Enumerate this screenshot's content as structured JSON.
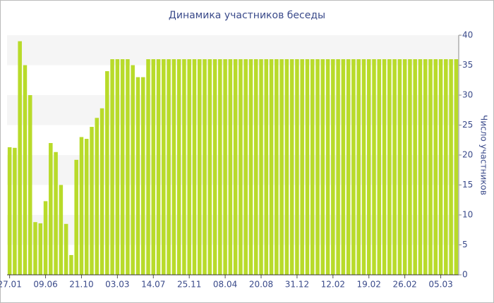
{
  "chart_data": {
    "type": "bar",
    "title": "Динамика участников беседы",
    "y_label": "Число участников",
    "categories": [
      "27.01",
      null,
      null,
      null,
      null,
      null,
      null,
      "09.06",
      null,
      null,
      null,
      null,
      null,
      null,
      "21.10",
      null,
      null,
      null,
      null,
      null,
      null,
      "03.03",
      null,
      null,
      null,
      null,
      null,
      null,
      "14.07",
      null,
      null,
      null,
      null,
      null,
      null,
      "25.11",
      null,
      null,
      null,
      null,
      null,
      null,
      "08.04",
      null,
      null,
      null,
      null,
      null,
      null,
      "20.08",
      null,
      null,
      null,
      null,
      null,
      null,
      "31.12",
      null,
      null,
      null,
      null,
      null,
      null,
      "12.02",
      null,
      null,
      null,
      null,
      null,
      null,
      "19.02",
      null,
      null,
      null,
      null,
      null,
      null,
      "26.02",
      null,
      null,
      null,
      null,
      null,
      null,
      "05.03",
      null,
      null,
      null
    ],
    "values": [
      21.3,
      21.2,
      39,
      35,
      30,
      8.8,
      8.6,
      12.3,
      22,
      20.5,
      15,
      8.5,
      3.3,
      19.2,
      23,
      22.7,
      24.7,
      26.2,
      27.8,
      34,
      36,
      36,
      36,
      36,
      35,
      33,
      33,
      36,
      36,
      36,
      36,
      36,
      36,
      36,
      36,
      36,
      36,
      36,
      36,
      36,
      36,
      36,
      36,
      36,
      36,
      36,
      36,
      36,
      36,
      36,
      36,
      36,
      36,
      36,
      36,
      36,
      36,
      36,
      36,
      36,
      36,
      36,
      36,
      36,
      36,
      36,
      36,
      36,
      36,
      36,
      36,
      36,
      36,
      36,
      36,
      36,
      36,
      36,
      36,
      36,
      36,
      36,
      36,
      36,
      36,
      36,
      36,
      36
    ],
    "color": "#b8db2a",
    "ylim": [
      0,
      40
    ],
    "yticks": [
      0,
      5,
      10,
      15,
      20,
      25,
      30,
      35,
      40
    ],
    "y_axis_side": "right",
    "grid": true
  }
}
